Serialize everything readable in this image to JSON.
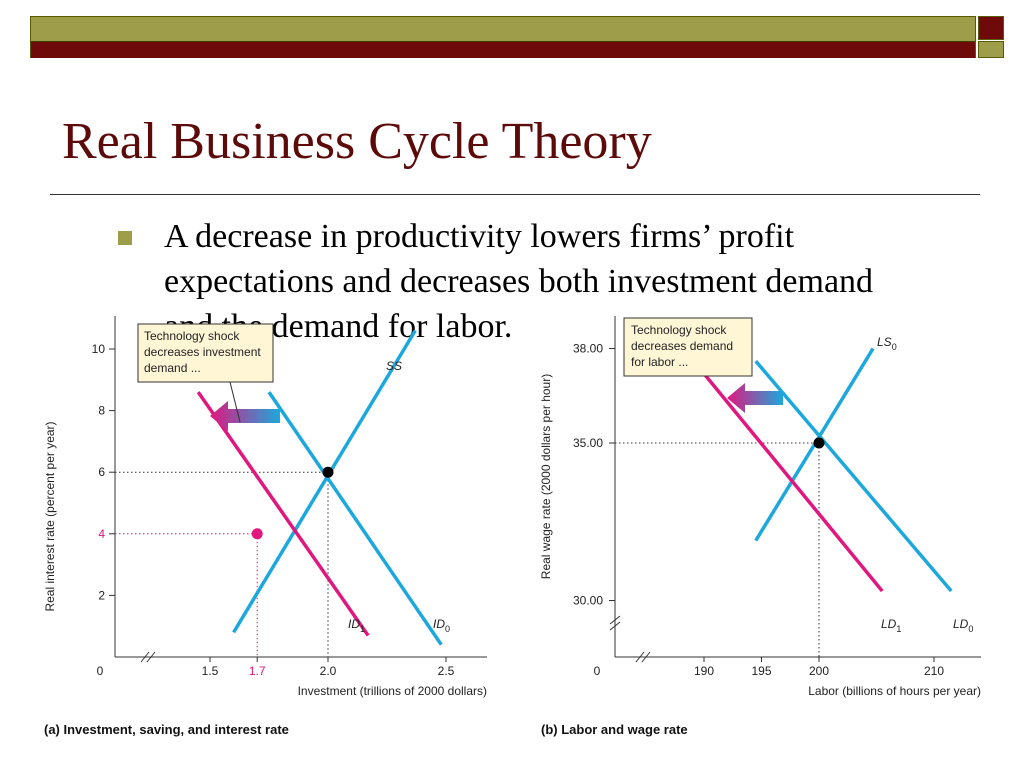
{
  "slide": {
    "title": "Real Business Cycle Theory",
    "bullet": "A decrease in productivity lowers firms’ profit expectations and decreases both investment demand and the demand for labor.",
    "colors": {
      "olive": "#9d9d4a",
      "maroon": "#6e0a0a",
      "title": "#5c0a0a"
    }
  },
  "chart_data": [
    {
      "type": "line",
      "caption": "(a) Investment, saving, and interest rate",
      "xlabel": "Investment (trillions of 2000 dollars)",
      "ylabel": "Real interest rate (percent per year)",
      "origin_label": "0",
      "x_ticks": [
        "1.5",
        "1.7",
        "2.0",
        "2.5"
      ],
      "y_ticks": [
        "2",
        "4",
        "6",
        "8",
        "10"
      ],
      "series": [
        {
          "name": "SS",
          "color": "#1ca8dc",
          "points": [
            [
              1.6,
              0.8
            ],
            [
              2.37,
              10.6
            ]
          ]
        },
        {
          "name": "ID0",
          "color": "#1ca8dc",
          "points": [
            [
              1.75,
              8.6
            ],
            [
              2.48,
              0.4
            ]
          ]
        },
        {
          "name": "ID1",
          "color": "#e0177f",
          "points": [
            [
              1.45,
              8.6
            ],
            [
              2.17,
              0.7
            ]
          ]
        }
      ],
      "labels": {
        "SS": {
          "text": "SS",
          "sub": ""
        },
        "ID0": {
          "text": "ID",
          "sub": "0"
        },
        "ID1": {
          "text": "ID",
          "sub": "1"
        }
      },
      "equilibria": [
        {
          "x": 2.0,
          "y": 6,
          "color": "#000000"
        },
        {
          "x": 1.7,
          "y": 4,
          "color": "#e0177f"
        }
      ],
      "annotation": "Technology shock decreases investment demand ...",
      "annotation_lines": [
        "Technology shock",
        "decreases investment",
        "demand ..."
      ]
    },
    {
      "type": "line",
      "caption": "(b) Labor and wage rate",
      "xlabel": "Labor (billions of hours per year)",
      "ylabel": "Real wage rate (2000 dollars per hour)",
      "origin_label": "0",
      "x_ticks": [
        "190",
        "195",
        "200",
        "210"
      ],
      "y_ticks": [
        "30.00",
        "35.00",
        "38.00"
      ],
      "series": [
        {
          "name": "LS0",
          "color": "#1ca8dc",
          "points": [
            [
              194.5,
              31.9
            ],
            [
              204.7,
              38.0
            ]
          ]
        },
        {
          "name": "LD0",
          "color": "#1ca8dc",
          "points": [
            [
              194.5,
              37.6
            ],
            [
              211.5,
              30.3
            ]
          ]
        },
        {
          "name": "LD1",
          "color": "#e0177f",
          "points": [
            [
              190,
              37.2
            ],
            [
              205.5,
              30.3
            ]
          ]
        }
      ],
      "labels": {
        "LS0": {
          "text": "LS",
          "sub": "0"
        },
        "LD0": {
          "text": "LD",
          "sub": "0"
        },
        "LD1": {
          "text": "LD",
          "sub": "1"
        }
      },
      "equilibria": [
        {
          "x": 200,
          "y": 35,
          "color": "#000000"
        }
      ],
      "annotation": "Technology shock decreases demand for labor ...",
      "annotation_lines": [
        "Technology shock",
        "decreases demand",
        "for labor ..."
      ]
    }
  ]
}
